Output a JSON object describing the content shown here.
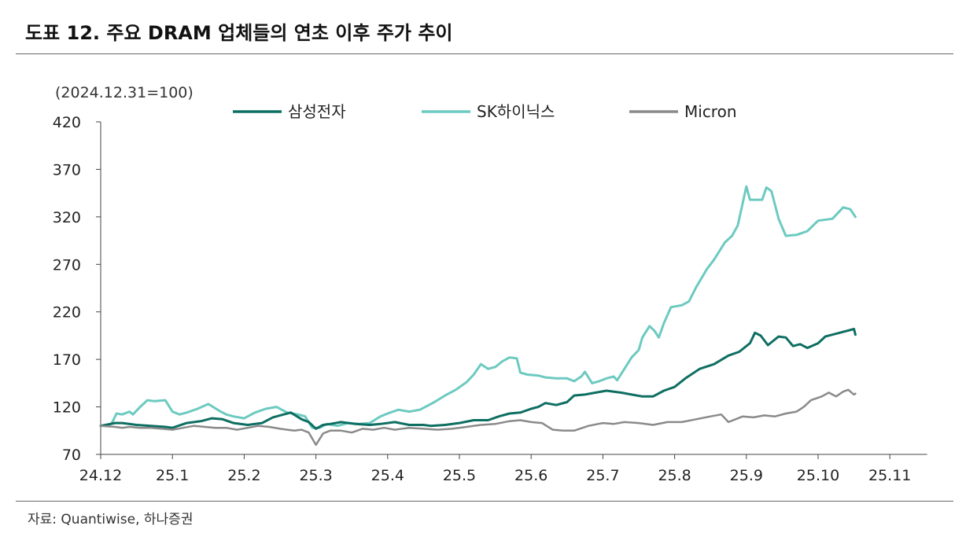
{
  "title": "도표 12. 주요 DRAM 업체들의 연초 이후 주가 추이",
  "source": "자료: Quantiwise, 하나증권",
  "chart_data": {
    "type": "line",
    "unit_note": "(2024.12.31=100)",
    "ylim": [
      70,
      420
    ],
    "yticks": [
      "420",
      "370",
      "320",
      "270",
      "220",
      "170",
      "120",
      "70"
    ],
    "xticks": [
      "24.12",
      "25.1",
      "25.2",
      "25.3",
      "25.4",
      "25.5",
      "25.6",
      "25.7",
      "25.8",
      "25.9",
      "25.10",
      "25.11"
    ],
    "x_range_months": [
      0,
      11.52
    ],
    "legend": [
      "삼성전자",
      "SK하이닉스",
      "Micron"
    ],
    "colors": [
      "#0e6e62",
      "#6ccac0",
      "#8a8a8a"
    ],
    "series": [
      {
        "name": "SK하이닉스",
        "color": "#6ccac0",
        "points": [
          [
            0,
            100
          ],
          [
            0.15,
            102
          ],
          [
            0.22,
            113
          ],
          [
            0.3,
            112
          ],
          [
            0.4,
            115
          ],
          [
            0.45,
            112
          ],
          [
            0.55,
            120
          ],
          [
            0.65,
            127
          ],
          [
            0.75,
            126
          ],
          [
            0.9,
            127
          ],
          [
            1.0,
            115
          ],
          [
            1.1,
            112
          ],
          [
            1.2,
            114
          ],
          [
            1.35,
            118
          ],
          [
            1.5,
            123
          ],
          [
            1.65,
            116
          ],
          [
            1.75,
            112
          ],
          [
            1.85,
            110
          ],
          [
            2.0,
            108
          ],
          [
            2.15,
            114
          ],
          [
            2.3,
            118
          ],
          [
            2.45,
            120
          ],
          [
            2.6,
            114
          ],
          [
            2.75,
            112
          ],
          [
            2.85,
            110
          ],
          [
            2.95,
            98
          ],
          [
            3.05,
            98
          ],
          [
            3.15,
            102
          ],
          [
            3.3,
            100
          ],
          [
            3.45,
            103
          ],
          [
            3.6,
            102
          ],
          [
            3.75,
            103
          ],
          [
            3.9,
            110
          ],
          [
            4.0,
            113
          ],
          [
            4.15,
            117
          ],
          [
            4.3,
            115
          ],
          [
            4.45,
            117
          ],
          [
            4.55,
            121
          ],
          [
            4.65,
            125
          ],
          [
            4.8,
            132
          ],
          [
            4.95,
            138
          ],
          [
            5.1,
            146
          ],
          [
            5.2,
            154
          ],
          [
            5.3,
            165
          ],
          [
            5.4,
            160
          ],
          [
            5.5,
            162
          ],
          [
            5.6,
            168
          ],
          [
            5.7,
            172
          ],
          [
            5.8,
            171
          ],
          [
            5.85,
            156
          ],
          [
            5.95,
            154
          ],
          [
            6.1,
            153
          ],
          [
            6.2,
            151
          ],
          [
            6.35,
            150
          ],
          [
            6.5,
            150
          ],
          [
            6.6,
            147
          ],
          [
            6.7,
            152
          ],
          [
            6.75,
            157
          ],
          [
            6.85,
            145
          ],
          [
            6.95,
            147
          ],
          [
            7.05,
            150
          ],
          [
            7.15,
            152
          ],
          [
            7.2,
            148
          ],
          [
            7.3,
            160
          ],
          [
            7.4,
            172
          ],
          [
            7.5,
            180
          ],
          [
            7.55,
            193
          ],
          [
            7.65,
            205
          ],
          [
            7.72,
            200
          ],
          [
            7.78,
            193
          ],
          [
            7.85,
            208
          ],
          [
            7.95,
            225
          ],
          [
            8.1,
            227
          ],
          [
            8.2,
            231
          ],
          [
            8.3,
            246
          ],
          [
            8.45,
            265
          ],
          [
            8.55,
            275
          ],
          [
            8.7,
            293
          ],
          [
            8.8,
            300
          ],
          [
            8.88,
            311
          ],
          [
            9.0,
            352
          ],
          [
            9.05,
            338
          ],
          [
            9.15,
            338
          ],
          [
            9.22,
            338
          ],
          [
            9.28,
            351
          ],
          [
            9.35,
            347
          ],
          [
            9.45,
            318
          ],
          [
            9.55,
            300
          ],
          [
            9.7,
            301
          ],
          [
            9.85,
            305
          ],
          [
            10.0,
            316
          ],
          [
            10.2,
            318
          ],
          [
            10.35,
            330
          ],
          [
            10.45,
            328
          ],
          [
            10.52,
            320
          ]
        ]
      },
      {
        "name": "삼성전자",
        "color": "#0e6e62",
        "points": [
          [
            0,
            100
          ],
          [
            0.2,
            103
          ],
          [
            0.3,
            103
          ],
          [
            0.5,
            101
          ],
          [
            0.7,
            100
          ],
          [
            0.9,
            99
          ],
          [
            1.0,
            98
          ],
          [
            1.2,
            103
          ],
          [
            1.4,
            105
          ],
          [
            1.55,
            108
          ],
          [
            1.7,
            107
          ],
          [
            1.85,
            103
          ],
          [
            2.05,
            101
          ],
          [
            2.25,
            103
          ],
          [
            2.4,
            109
          ],
          [
            2.55,
            112
          ],
          [
            2.65,
            114
          ],
          [
            2.8,
            107
          ],
          [
            2.9,
            104
          ],
          [
            3.0,
            97
          ],
          [
            3.1,
            101
          ],
          [
            3.2,
            102
          ],
          [
            3.35,
            104
          ],
          [
            3.55,
            102
          ],
          [
            3.75,
            101
          ],
          [
            3.9,
            102
          ],
          [
            4.1,
            104
          ],
          [
            4.3,
            101
          ],
          [
            4.5,
            101
          ],
          [
            4.6,
            100
          ],
          [
            4.8,
            101
          ],
          [
            5.0,
            103
          ],
          [
            5.2,
            106
          ],
          [
            5.4,
            106
          ],
          [
            5.55,
            110
          ],
          [
            5.7,
            113
          ],
          [
            5.85,
            114
          ],
          [
            6.0,
            118
          ],
          [
            6.1,
            120
          ],
          [
            6.2,
            124
          ],
          [
            6.35,
            122
          ],
          [
            6.5,
            125
          ],
          [
            6.6,
            132
          ],
          [
            6.75,
            133
          ],
          [
            6.9,
            135
          ],
          [
            7.05,
            137
          ],
          [
            7.25,
            135
          ],
          [
            7.4,
            133
          ],
          [
            7.55,
            131
          ],
          [
            7.7,
            131
          ],
          [
            7.85,
            137
          ],
          [
            8.0,
            141
          ],
          [
            8.15,
            150
          ],
          [
            8.35,
            160
          ],
          [
            8.55,
            165
          ],
          [
            8.75,
            174
          ],
          [
            8.9,
            178
          ],
          [
            9.05,
            187
          ],
          [
            9.12,
            198
          ],
          [
            9.2,
            195
          ],
          [
            9.3,
            185
          ],
          [
            9.45,
            194
          ],
          [
            9.55,
            193
          ],
          [
            9.65,
            184
          ],
          [
            9.75,
            186
          ],
          [
            9.85,
            182
          ],
          [
            10.0,
            187
          ],
          [
            10.1,
            194
          ],
          [
            10.3,
            198
          ],
          [
            10.5,
            202
          ],
          [
            10.52,
            196
          ]
        ]
      },
      {
        "name": "Micron",
        "color": "#8a8a8a",
        "points": [
          [
            0,
            100
          ],
          [
            0.2,
            99
          ],
          [
            0.3,
            98
          ],
          [
            0.4,
            99
          ],
          [
            0.55,
            98
          ],
          [
            0.7,
            98
          ],
          [
            0.85,
            97
          ],
          [
            1.0,
            96
          ],
          [
            1.15,
            98
          ],
          [
            1.3,
            100
          ],
          [
            1.45,
            99
          ],
          [
            1.6,
            98
          ],
          [
            1.75,
            98
          ],
          [
            1.9,
            96
          ],
          [
            2.05,
            98
          ],
          [
            2.2,
            100
          ],
          [
            2.35,
            99
          ],
          [
            2.5,
            97
          ],
          [
            2.6,
            96
          ],
          [
            2.7,
            95
          ],
          [
            2.8,
            96
          ],
          [
            2.9,
            93
          ],
          [
            3.0,
            80
          ],
          [
            3.1,
            92
          ],
          [
            3.2,
            95
          ],
          [
            3.35,
            95
          ],
          [
            3.5,
            93
          ],
          [
            3.65,
            97
          ],
          [
            3.8,
            96
          ],
          [
            3.95,
            98
          ],
          [
            4.1,
            96
          ],
          [
            4.3,
            98
          ],
          [
            4.5,
            97
          ],
          [
            4.7,
            96
          ],
          [
            4.9,
            97
          ],
          [
            5.1,
            99
          ],
          [
            5.3,
            101
          ],
          [
            5.5,
            102
          ],
          [
            5.7,
            105
          ],
          [
            5.85,
            106
          ],
          [
            6.0,
            104
          ],
          [
            6.15,
            103
          ],
          [
            6.3,
            96
          ],
          [
            6.45,
            95
          ],
          [
            6.6,
            95
          ],
          [
            6.8,
            100
          ],
          [
            7.0,
            103
          ],
          [
            7.15,
            102
          ],
          [
            7.3,
            104
          ],
          [
            7.5,
            103
          ],
          [
            7.7,
            101
          ],
          [
            7.9,
            104
          ],
          [
            8.1,
            104
          ],
          [
            8.3,
            107
          ],
          [
            8.5,
            110
          ],
          [
            8.65,
            112
          ],
          [
            8.75,
            104
          ],
          [
            8.85,
            107
          ],
          [
            8.95,
            110
          ],
          [
            9.1,
            109
          ],
          [
            9.25,
            111
          ],
          [
            9.4,
            110
          ],
          [
            9.55,
            113
          ],
          [
            9.7,
            115
          ],
          [
            9.8,
            120
          ],
          [
            9.9,
            127
          ],
          [
            10.05,
            131
          ],
          [
            10.15,
            135
          ],
          [
            10.25,
            131
          ],
          [
            10.35,
            136
          ],
          [
            10.42,
            138
          ],
          [
            10.5,
            133
          ],
          [
            10.52,
            134
          ]
        ]
      }
    ]
  }
}
